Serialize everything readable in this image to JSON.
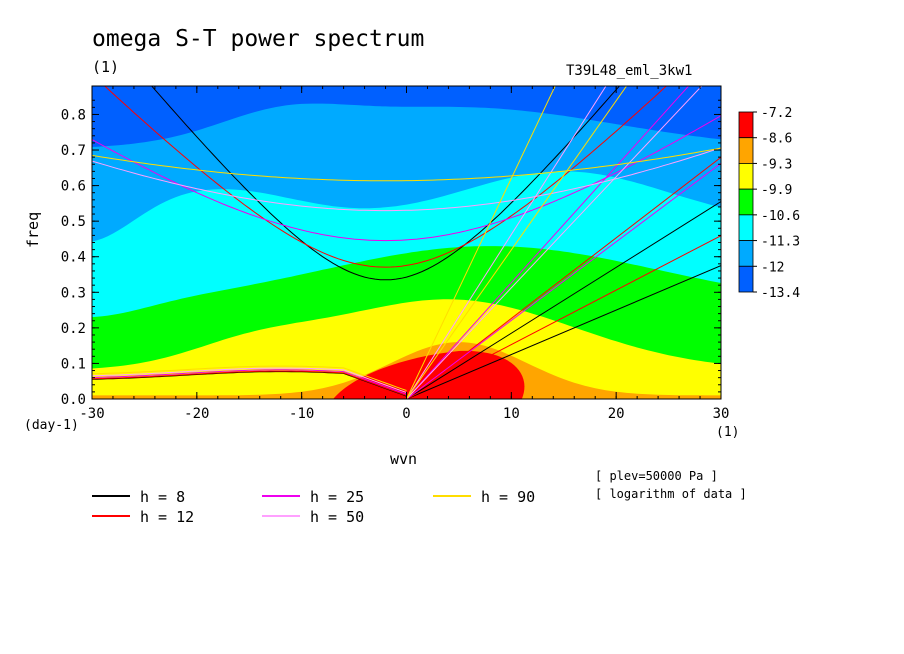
{
  "chart_data": {
    "type": "heatmap",
    "title": "omega S-T power spectrum",
    "units_label": "(1)",
    "run_label": "T39L48_eml_3kw1",
    "xlabel": "wvn",
    "ylabel": "freq",
    "x_unit": "(1)",
    "y_unit": "(day-1)",
    "xlim": [
      -30,
      30
    ],
    "ylim": [
      0.0,
      0.88
    ],
    "x_ticks": [
      "-30",
      "-20",
      "-10",
      "0",
      "10",
      "20",
      "30"
    ],
    "y_ticks": [
      "0.0",
      "0.1",
      "0.2",
      "0.3",
      "0.4",
      "0.5",
      "0.6",
      "0.7",
      "0.8"
    ],
    "colorbar": {
      "labels": [
        "-7.2",
        "-8.6",
        "-9.3",
        "-9.9",
        "-10.6",
        "-11.3",
        "-12",
        "-13.4"
      ],
      "colors": [
        "#ff0000",
        "#ffa500",
        "#ffff00",
        "#00ff00",
        "#00ffff",
        "#00aaff",
        "#0060ff"
      ]
    },
    "dispersion_curves": [
      {
        "label": "h = 8",
        "h": 8,
        "color": "#000000"
      },
      {
        "label": "h = 12",
        "h": 12,
        "color": "#ff0000"
      },
      {
        "label": "h = 25",
        "h": 25,
        "color": "#ee00ee"
      },
      {
        "label": "h = 50",
        "h": 50,
        "color": "#ffa0ff"
      },
      {
        "label": "h = 90",
        "h": 90,
        "color": "#ffdd00"
      }
    ],
    "notes": [
      "[ plev=50000 Pa ]",
      "[ logarithm of data ]"
    ]
  }
}
